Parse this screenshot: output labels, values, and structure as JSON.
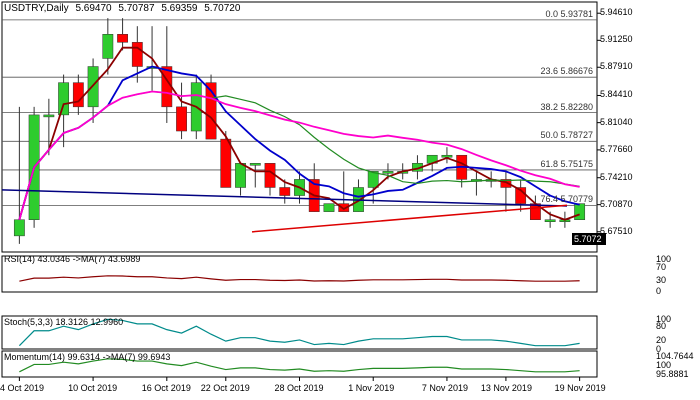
{
  "header": {
    "symbol": "USDTRY,Daily",
    "open": "5.69470",
    "high": "5.70787",
    "low": "5.69359",
    "close": "5.70720"
  },
  "last_price": "5.7072",
  "chart_data": {
    "type": "candlestick",
    "ylim": [
      5.65,
      5.96
    ],
    "y_ticks": [
      "5.94610",
      "5.91250",
      "5.87910",
      "5.84410",
      "5.81040",
      "5.77660",
      "5.74210",
      "5.70870",
      "5.67510"
    ],
    "x_ticks": [
      "4 Oct 2019",
      "10 Oct 2019",
      "16 Oct 2019",
      "22 Oct 2019",
      "28 Oct 2019",
      "1 Nov 2019",
      "7 Nov 2019",
      "13 Nov 2019",
      "19 Nov 2019"
    ],
    "fib_levels": [
      {
        "label": "0.0 5.93781",
        "value": 5.93781
      },
      {
        "label": "23.6 5.86676",
        "value": 5.86676
      },
      {
        "label": "38.2 5.82280",
        "value": 5.8228
      },
      {
        "label": "50.0 5.78727",
        "value": 5.78727
      },
      {
        "label": "61.8 5.75175",
        "value": 5.75175
      },
      {
        "label": "76.4 5.70779",
        "value": 5.70779
      }
    ],
    "candles": [
      [
        5.67,
        5.83,
        5.66,
        5.69
      ],
      [
        5.69,
        5.83,
        5.68,
        5.82
      ],
      [
        5.82,
        5.84,
        5.77,
        5.82
      ],
      [
        5.82,
        5.87,
        5.78,
        5.86
      ],
      [
        5.86,
        5.87,
        5.82,
        5.83
      ],
      [
        5.83,
        5.89,
        5.81,
        5.88
      ],
      [
        5.89,
        5.94,
        5.87,
        5.92
      ],
      [
        5.92,
        5.94,
        5.9,
        5.91
      ],
      [
        5.91,
        5.93,
        5.86,
        5.88
      ],
      [
        5.88,
        5.93,
        5.85,
        5.88
      ],
      [
        5.88,
        5.93,
        5.81,
        5.83
      ],
      [
        5.83,
        5.86,
        5.79,
        5.8
      ],
      [
        5.8,
        5.87,
        5.79,
        5.86
      ],
      [
        5.86,
        5.87,
        5.79,
        5.79
      ],
      [
        5.79,
        5.8,
        5.73,
        5.73
      ],
      [
        5.73,
        5.76,
        5.72,
        5.76
      ],
      [
        5.76,
        5.76,
        5.73,
        5.76
      ],
      [
        5.76,
        5.76,
        5.72,
        5.73
      ],
      [
        5.73,
        5.74,
        5.71,
        5.72
      ],
      [
        5.72,
        5.75,
        5.71,
        5.74
      ],
      [
        5.74,
        5.76,
        5.7,
        5.7
      ],
      [
        5.7,
        5.71,
        5.7,
        5.71
      ],
      [
        5.71,
        5.75,
        5.7,
        5.7
      ],
      [
        5.7,
        5.74,
        5.7,
        5.73
      ],
      [
        5.73,
        5.75,
        5.71,
        5.75
      ],
      [
        5.75,
        5.76,
        5.74,
        5.75
      ],
      [
        5.75,
        5.76,
        5.74,
        5.75
      ],
      [
        5.75,
        5.77,
        5.74,
        5.76
      ],
      [
        5.76,
        5.77,
        5.75,
        5.77
      ],
      [
        5.77,
        5.78,
        5.76,
        5.77
      ],
      [
        5.77,
        5.77,
        5.73,
        5.74
      ],
      [
        5.74,
        5.75,
        5.72,
        5.74
      ],
      [
        5.74,
        5.75,
        5.73,
        5.74
      ],
      [
        5.74,
        5.75,
        5.7,
        5.73
      ],
      [
        5.73,
        5.74,
        5.7,
        5.71
      ],
      [
        5.71,
        5.72,
        5.69,
        5.69
      ],
      [
        5.69,
        5.7,
        5.68,
        5.69
      ],
      [
        5.69,
        5.7,
        5.68,
        5.69
      ],
      [
        5.69,
        5.71,
        5.69,
        5.71
      ]
    ],
    "rsi": {
      "label": "RSI(14) 43.0346",
      "ma_label": "->MA(7) 43.6989",
      "ticks": [
        "100",
        "70",
        "30",
        "0"
      ]
    },
    "stoch": {
      "label": "Stoch(5,3,3) 18.3126 12.9960",
      "ticks": [
        "100",
        "80",
        "20",
        "0"
      ]
    },
    "momentum": {
      "label": "Momentum(14) 99.6314",
      "ma_label": "->MA(7) 99.6943",
      "ticks": [
        "104.7644",
        "100",
        "95.8881"
      ]
    },
    "colors": {
      "bull": "#2ecc2e",
      "bear": "#ff0000",
      "ma_fast": "#8b0000",
      "ma_mid": "#0000cc",
      "ma_slow": "#228b22",
      "ma_magenta": "#ff00cc"
    }
  }
}
